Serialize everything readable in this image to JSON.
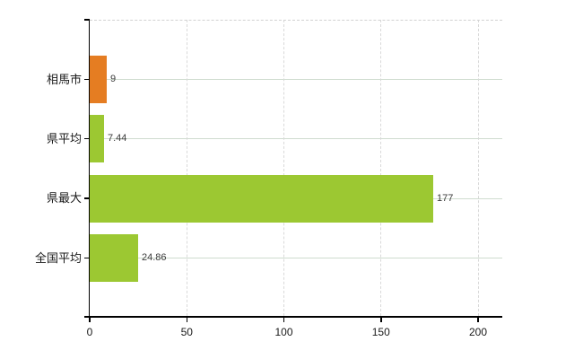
{
  "chart_data": {
    "type": "bar",
    "orientation": "horizontal",
    "title": "",
    "xlabel": "",
    "ylabel": "",
    "categories": [
      "相馬市",
      "県平均",
      "県最大",
      "全国平均"
    ],
    "values": [
      9,
      7.44,
      177,
      24.86
    ],
    "value_labels": [
      "9",
      "7.44",
      "177",
      "24.86"
    ],
    "bar_colors": [
      "#e57d22",
      "#9cc832",
      "#9cc832",
      "#9cc832"
    ],
    "x_ticks": [
      "0",
      "50",
      "100",
      "150",
      "200"
    ],
    "x_tick_values": [
      0,
      50,
      100,
      150,
      200
    ],
    "xlim": [
      0,
      212.5
    ],
    "grid": {
      "vertical": "dashed-light-gray",
      "horizontal": "solid-category-lines",
      "top_border": "dashed-light-gray"
    },
    "legend": "none"
  },
  "colors": {
    "background": "#ffffff",
    "bar_orange": "#e57d22",
    "bar_green": "#9cc832",
    "axis": "#000000",
    "vertical_gridline": "#d9d9d9",
    "horizontal_gridline": "#cfdccf",
    "value_label": "#3c3c3c",
    "tick_label": "#1a1a1a"
  }
}
